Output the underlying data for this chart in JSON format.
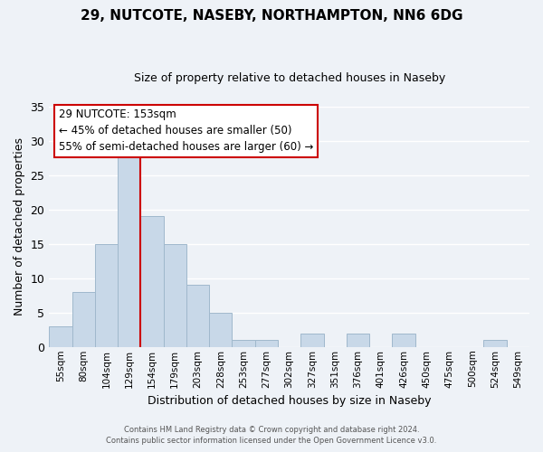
{
  "title": "29, NUTCOTE, NASEBY, NORTHAMPTON, NN6 6DG",
  "subtitle": "Size of property relative to detached houses in Naseby",
  "xlabel": "Distribution of detached houses by size in Naseby",
  "ylabel": "Number of detached properties",
  "bar_color": "#c8d8e8",
  "bar_edge_color": "#a0b8cc",
  "background_color": "#eef2f7",
  "grid_color": "white",
  "bins": [
    "55sqm",
    "80sqm",
    "104sqm",
    "129sqm",
    "154sqm",
    "179sqm",
    "203sqm",
    "228sqm",
    "253sqm",
    "277sqm",
    "302sqm",
    "327sqm",
    "351sqm",
    "376sqm",
    "401sqm",
    "426sqm",
    "450sqm",
    "475sqm",
    "500sqm",
    "524sqm",
    "549sqm"
  ],
  "counts": [
    3,
    8,
    15,
    28,
    19,
    15,
    9,
    5,
    1,
    1,
    0,
    2,
    0,
    2,
    0,
    2,
    0,
    0,
    0,
    1,
    0
  ],
  "ylim": [
    0,
    35
  ],
  "yticks": [
    0,
    5,
    10,
    15,
    20,
    25,
    30,
    35
  ],
  "vline_color": "#cc0000",
  "annotation_title": "29 NUTCOTE: 153sqm",
  "annotation_line1": "← 45% of detached houses are smaller (50)",
  "annotation_line2": "55% of semi-detached houses are larger (60) →",
  "annotation_box_color": "white",
  "annotation_box_edge": "#cc0000",
  "footer1": "Contains HM Land Registry data © Crown copyright and database right 2024.",
  "footer2": "Contains public sector information licensed under the Open Government Licence v3.0."
}
